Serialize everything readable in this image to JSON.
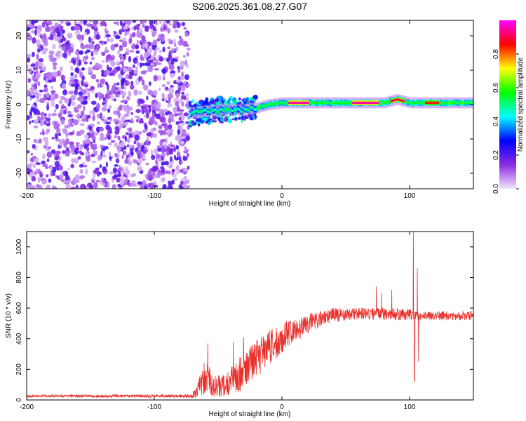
{
  "title": "S206.2025.361.08.27.G07",
  "chart_data": [
    {
      "type": "heatmap",
      "name": "spectrogram",
      "xlabel": "Height of straight line (km)",
      "ylabel": "Frequency (Hz)",
      "xlim": [
        -200,
        150
      ],
      "ylim": [
        -24.5,
        24.5
      ],
      "xticks": [
        -200,
        -100,
        0,
        100
      ],
      "xtick_labels": [
        "-200",
        "-100",
        "0",
        "100"
      ],
      "yticks": [
        -20,
        -10,
        0,
        10,
        20
      ],
      "ytick_labels": [
        "-20",
        "-10",
        "0",
        "10",
        "20"
      ],
      "noise_region_x": [
        -200,
        -73
      ],
      "transition_region_x": [
        -73,
        -20
      ],
      "signal_ridge": [
        {
          "x": -73,
          "f": -2.5
        },
        {
          "x": -60,
          "f": -2.0
        },
        {
          "x": -45,
          "f": -1.5
        },
        {
          "x": -30,
          "f": -1.5
        },
        {
          "x": -20,
          "f": -1.0
        },
        {
          "x": -10,
          "f": 0.0
        },
        {
          "x": 0,
          "f": 0.5
        },
        {
          "x": 10,
          "f": 0.5
        },
        {
          "x": 30,
          "f": 0.5
        },
        {
          "x": 60,
          "f": 0.5
        },
        {
          "x": 80,
          "f": 0.5
        },
        {
          "x": 90,
          "f": 1.5
        },
        {
          "x": 100,
          "f": 0.5
        },
        {
          "x": 120,
          "f": 0.5
        },
        {
          "x": 150,
          "f": 0.5
        }
      ],
      "peak_segments": [
        {
          "x0": 5,
          "x1": 20,
          "amplitude": 0.95
        },
        {
          "x0": 55,
          "x1": 75,
          "amplitude": 0.95
        },
        {
          "x0": 85,
          "x1": 95,
          "amplitude": 0.9
        },
        {
          "x0": 112,
          "x1": 122,
          "amplitude": 0.85
        }
      ],
      "colorbar": {
        "label": "Normalized spectral amplitude",
        "range": [
          0.0,
          1.0
        ],
        "ticks": [
          0.0,
          0.2,
          0.4,
          0.6,
          0.8
        ],
        "tick_labels": [
          "0.0",
          "0.2",
          "0.4",
          "0.6",
          "0.8"
        ],
        "colors": [
          "#f3e6fb",
          "#8a2be2",
          "#0000ff",
          "#00ffff",
          "#00ff00",
          "#ffff00",
          "#ff0000",
          "#ff00ff"
        ]
      }
    },
    {
      "type": "line",
      "name": "snr",
      "xlabel": "Height of straight line (km)",
      "ylabel": "SNR (10 * v/v)",
      "xlim": [
        -200,
        150
      ],
      "ylim": [
        0,
        1100
      ],
      "xticks": [
        -200,
        -100,
        0,
        100
      ],
      "xtick_labels": [
        "-200",
        "-100",
        "0",
        "100"
      ],
      "yticks": [
        0,
        200,
        400,
        600,
        800,
        1000
      ],
      "ytick_labels": [
        "0",
        "200",
        "400",
        "600",
        "800",
        "1000"
      ],
      "line_color": "#e8302c",
      "envelope": [
        {
          "x": -200,
          "base": 25,
          "amp": 8
        },
        {
          "x": -75,
          "base": 25,
          "amp": 10
        },
        {
          "x": -68,
          "base": 40,
          "amp": 30
        },
        {
          "x": -60,
          "base": 160,
          "amp": 120
        },
        {
          "x": -55,
          "base": 100,
          "amp": 80
        },
        {
          "x": -45,
          "base": 90,
          "amp": 70
        },
        {
          "x": -35,
          "base": 150,
          "amp": 110
        },
        {
          "x": -25,
          "base": 230,
          "amp": 130
        },
        {
          "x": -15,
          "base": 300,
          "amp": 120
        },
        {
          "x": -5,
          "base": 380,
          "amp": 110
        },
        {
          "x": 5,
          "base": 430,
          "amp": 90
        },
        {
          "x": 15,
          "base": 470,
          "amp": 70
        },
        {
          "x": 25,
          "base": 520,
          "amp": 60
        },
        {
          "x": 40,
          "base": 555,
          "amp": 45
        },
        {
          "x": 60,
          "base": 565,
          "amp": 40
        },
        {
          "x": 80,
          "base": 560,
          "amp": 40
        },
        {
          "x": 95,
          "base": 560,
          "amp": 40
        },
        {
          "x": 110,
          "base": 550,
          "amp": 30
        },
        {
          "x": 150,
          "base": 550,
          "amp": 30
        }
      ],
      "spikes": [
        {
          "x": -58,
          "value": 370
        },
        {
          "x": -38,
          "value": 380
        },
        {
          "x": -30,
          "value": 410
        },
        {
          "x": 74,
          "value": 740
        },
        {
          "x": 78,
          "value": 700
        },
        {
          "x": 86,
          "value": 720
        },
        {
          "x": 103,
          "value": 1100
        },
        {
          "x": 104,
          "value": 120
        },
        {
          "x": 106,
          "value": 860
        },
        {
          "x": 107,
          "value": 250
        }
      ]
    }
  ]
}
